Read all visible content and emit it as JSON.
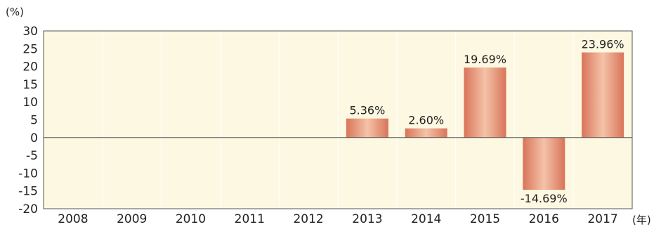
{
  "chart_data": {
    "type": "bar",
    "categories": [
      "2008",
      "2009",
      "2010",
      "2011",
      "2012",
      "2013",
      "2014",
      "2015",
      "2016",
      "2017"
    ],
    "values": [
      null,
      null,
      null,
      null,
      null,
      5.36,
      2.6,
      19.69,
      -14.69,
      23.96
    ],
    "data_labels": [
      "",
      "",
      "",
      "",
      "",
      "5.36%",
      "2.60%",
      "19.69%",
      "-14.69%",
      "23.96%"
    ],
    "ylabel": "(%)",
    "xlabel": "(年)",
    "ylim": [
      -20,
      30
    ],
    "yticks": [
      30,
      25,
      20,
      15,
      10,
      5,
      0,
      -5,
      -10,
      -15,
      -20
    ],
    "grid": "vertical-category-separators",
    "colors": {
      "plot_background": "#fdf8e1",
      "bar_light": "#f4c3a8",
      "bar_dark": "#d9745a",
      "axis": "#555555",
      "separator": "#ffffff"
    }
  }
}
